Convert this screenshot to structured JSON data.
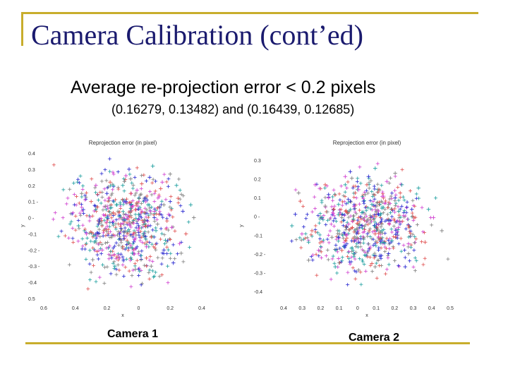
{
  "slide": {
    "title": "Camera Calibration (cont’ed)",
    "bullet": "Average re-projection error < 0.2 pixels",
    "sub_bullet": "(0.16279, 0.13482) and (0.16439, 0.12685)",
    "accent_color": "#c8ad2c",
    "title_color": "#1a1a6e"
  },
  "chart_data": [
    {
      "type": "scatter",
      "title": "Reprojection error (in pixel)",
      "xlabel": "x",
      "ylabel": "y",
      "x_ticks": [
        "0.6",
        "0.4",
        "0.2",
        "0",
        "0.2",
        "0.4"
      ],
      "y_ticks": [
        "0.4",
        "0.3",
        "0.2",
        "0.1 -",
        "0 -",
        "-0.1",
        "-0.2 -",
        "-0.3 -",
        "-0.4",
        "0.5"
      ],
      "xlim": [
        -0.6,
        0.4
      ],
      "ylim": [
        -0.5,
        0.4
      ],
      "marker": "+",
      "series": [
        {
          "color": "#e05050",
          "values": [
            [
              -0.16,
              0.03
            ],
            [
              0.08,
              -0.12
            ],
            [
              -0.05,
              0.15
            ],
            [
              0.12,
              0.06
            ],
            [
              -0.22,
              -0.08
            ],
            [
              0.02,
              0.21
            ],
            [
              0.18,
              -0.02
            ],
            [
              -0.1,
              -0.18
            ],
            [
              0.25,
              0.12
            ],
            [
              -0.3,
              0.1
            ],
            [
              0.05,
              -0.25
            ],
            [
              -0.02,
              0.05
            ],
            [
              0.14,
              0.18
            ],
            [
              -0.18,
              0.22
            ],
            [
              0.3,
              -0.1
            ]
          ]
        },
        {
          "color": "#2a2ad0",
          "values": [
            [
              -0.08,
              0.1
            ],
            [
              0.1,
              0.0
            ],
            [
              -0.25,
              -0.02
            ],
            [
              0.04,
              0.12
            ],
            [
              -0.12,
              -0.1
            ],
            [
              0.2,
              0.1
            ],
            [
              -0.03,
              -0.15
            ],
            [
              0.07,
              0.25
            ],
            [
              -0.35,
              0.05
            ],
            [
              0.16,
              -0.2
            ],
            [
              -0.2,
              0.15
            ],
            [
              0.28,
              0.04
            ],
            [
              0.0,
              -0.05
            ],
            [
              -0.06,
              0.3
            ],
            [
              0.22,
              -0.28
            ]
          ]
        },
        {
          "color": "#20a0a0",
          "values": [
            [
              0.0,
              0.02
            ],
            [
              -0.14,
              0.08
            ],
            [
              0.11,
              -0.08
            ],
            [
              -0.04,
              -0.22
            ],
            [
              0.24,
              0.2
            ],
            [
              -0.28,
              -0.15
            ],
            [
              0.06,
              0.08
            ],
            [
              -0.1,
              0.2
            ],
            [
              0.17,
              -0.14
            ],
            [
              -0.2,
              0.0
            ],
            [
              0.33,
              0.08
            ],
            [
              -0.38,
              -0.05
            ],
            [
              0.09,
              0.32
            ],
            [
              -0.15,
              -0.3
            ],
            [
              0.03,
              -0.1
            ]
          ]
        },
        {
          "color": "#d040d0",
          "values": [
            [
              -0.06,
              -0.04
            ],
            [
              0.13,
              0.13
            ],
            [
              -0.19,
              0.12
            ],
            [
              0.05,
              -0.18
            ],
            [
              -0.27,
              0.2
            ],
            [
              0.21,
              -0.06
            ],
            [
              -0.01,
              0.17
            ],
            [
              0.15,
              0.22
            ],
            [
              -0.12,
              -0.25
            ],
            [
              0.26,
              -0.16
            ],
            [
              -0.33,
              -0.1
            ],
            [
              0.1,
              0.04
            ],
            [
              -0.08,
              0.26
            ],
            [
              0.19,
              0.02
            ],
            [
              -0.23,
              -0.2
            ]
          ]
        },
        {
          "color": "#808080",
          "values": [
            [
              0.04,
              -0.02
            ],
            [
              -0.11,
              0.0
            ],
            [
              0.16,
              0.08
            ],
            [
              -0.21,
              0.07
            ],
            [
              0.08,
              -0.3
            ],
            [
              -0.05,
              0.24
            ],
            [
              0.27,
              -0.22
            ],
            [
              -0.36,
              0.15
            ],
            [
              0.12,
              -0.04
            ],
            [
              -0.17,
              -0.12
            ],
            [
              0.35,
              0.0
            ],
            [
              -0.02,
              -0.32
            ],
            [
              0.2,
              0.27
            ],
            [
              -0.29,
              -0.26
            ],
            [
              0.01,
              0.14
            ]
          ]
        }
      ]
    },
    {
      "type": "scatter",
      "title": "Reprojection error (in pixel)",
      "xlabel": "x",
      "ylabel": "y",
      "x_ticks": [
        "0.4",
        "0.3",
        "0.2",
        "0.1",
        "0",
        "0.1",
        "0.2",
        "0.3",
        "0.4",
        "0.5"
      ],
      "y_ticks": [
        "0.3",
        "0.2",
        "0.1",
        "0 -",
        "-0.1",
        "-0.2 -",
        "-0.3 -",
        "-0.4"
      ],
      "xlim": [
        -0.45,
        0.55
      ],
      "ylim": [
        -0.45,
        0.35
      ],
      "marker": "+",
      "series": [
        {
          "color": "#e05050",
          "values": [
            [
              -0.15,
              0.05
            ],
            [
              0.1,
              -0.1
            ],
            [
              -0.02,
              0.15
            ],
            [
              0.2,
              0.05
            ],
            [
              -0.28,
              -0.08
            ],
            [
              0.05,
              0.2
            ],
            [
              0.3,
              -0.05
            ],
            [
              -0.1,
              -0.2
            ],
            [
              0.25,
              0.15
            ],
            [
              -0.35,
              0.1
            ],
            [
              0.08,
              -0.28
            ],
            [
              0.0,
              0.0
            ],
            [
              0.15,
              0.12
            ],
            [
              -0.2,
              0.2
            ],
            [
              0.4,
              -0.15
            ]
          ]
        },
        {
          "color": "#2a2ad0",
          "values": [
            [
              -0.05,
              0.1
            ],
            [
              0.12,
              0.02
            ],
            [
              -0.22,
              0.0
            ],
            [
              0.03,
              0.1
            ],
            [
              -0.12,
              -0.12
            ],
            [
              0.22,
              0.12
            ],
            [
              0.0,
              -0.15
            ],
            [
              0.06,
              0.25
            ],
            [
              -0.38,
              0.02
            ],
            [
              0.18,
              -0.22
            ],
            [
              -0.18,
              0.14
            ],
            [
              0.32,
              0.05
            ],
            [
              0.02,
              -0.05
            ],
            [
              -0.05,
              0.28
            ],
            [
              0.28,
              -0.3
            ]
          ]
        },
        {
          "color": "#20a0a0",
          "values": [
            [
              0.02,
              0.03
            ],
            [
              -0.12,
              0.08
            ],
            [
              0.14,
              -0.08
            ],
            [
              -0.03,
              -0.22
            ],
            [
              0.26,
              0.2
            ],
            [
              -0.3,
              -0.15
            ],
            [
              0.08,
              0.08
            ],
            [
              -0.08,
              0.2
            ],
            [
              0.2,
              -0.14
            ],
            [
              -0.22,
              0.0
            ],
            [
              0.42,
              0.05
            ],
            [
              -0.4,
              -0.05
            ],
            [
              0.1,
              0.3
            ],
            [
              -0.14,
              -0.3
            ],
            [
              0.36,
              0.18
            ]
          ]
        },
        {
          "color": "#d040d0",
          "values": [
            [
              -0.06,
              -0.04
            ],
            [
              0.15,
              0.13
            ],
            [
              -0.18,
              0.12
            ],
            [
              0.07,
              -0.18
            ],
            [
              -0.26,
              0.2
            ],
            [
              0.24,
              -0.06
            ],
            [
              0.0,
              0.17
            ],
            [
              0.17,
              0.22
            ],
            [
              -0.12,
              -0.25
            ],
            [
              0.3,
              -0.16
            ],
            [
              -0.34,
              -0.1
            ],
            [
              0.12,
              0.04
            ],
            [
              -0.08,
              0.25
            ],
            [
              0.45,
              0.0
            ],
            [
              -0.24,
              -0.2
            ]
          ]
        },
        {
          "color": "#808080",
          "values": [
            [
              0.05,
              -0.02
            ],
            [
              -0.1,
              0.0
            ],
            [
              0.18,
              0.08
            ],
            [
              -0.2,
              0.07
            ],
            [
              0.1,
              -0.3
            ],
            [
              -0.04,
              0.24
            ],
            [
              0.3,
              -0.22
            ],
            [
              -0.36,
              0.15
            ],
            [
              0.14,
              -0.04
            ],
            [
              -0.16,
              -0.12
            ],
            [
              0.5,
              -0.08
            ],
            [
              0.0,
              -0.32
            ],
            [
              0.22,
              0.27
            ],
            [
              -0.3,
              -0.26
            ],
            [
              0.04,
              0.14
            ]
          ]
        }
      ]
    }
  ],
  "captions": {
    "camera1": "Camera 1",
    "camera2": "Camera 2"
  }
}
